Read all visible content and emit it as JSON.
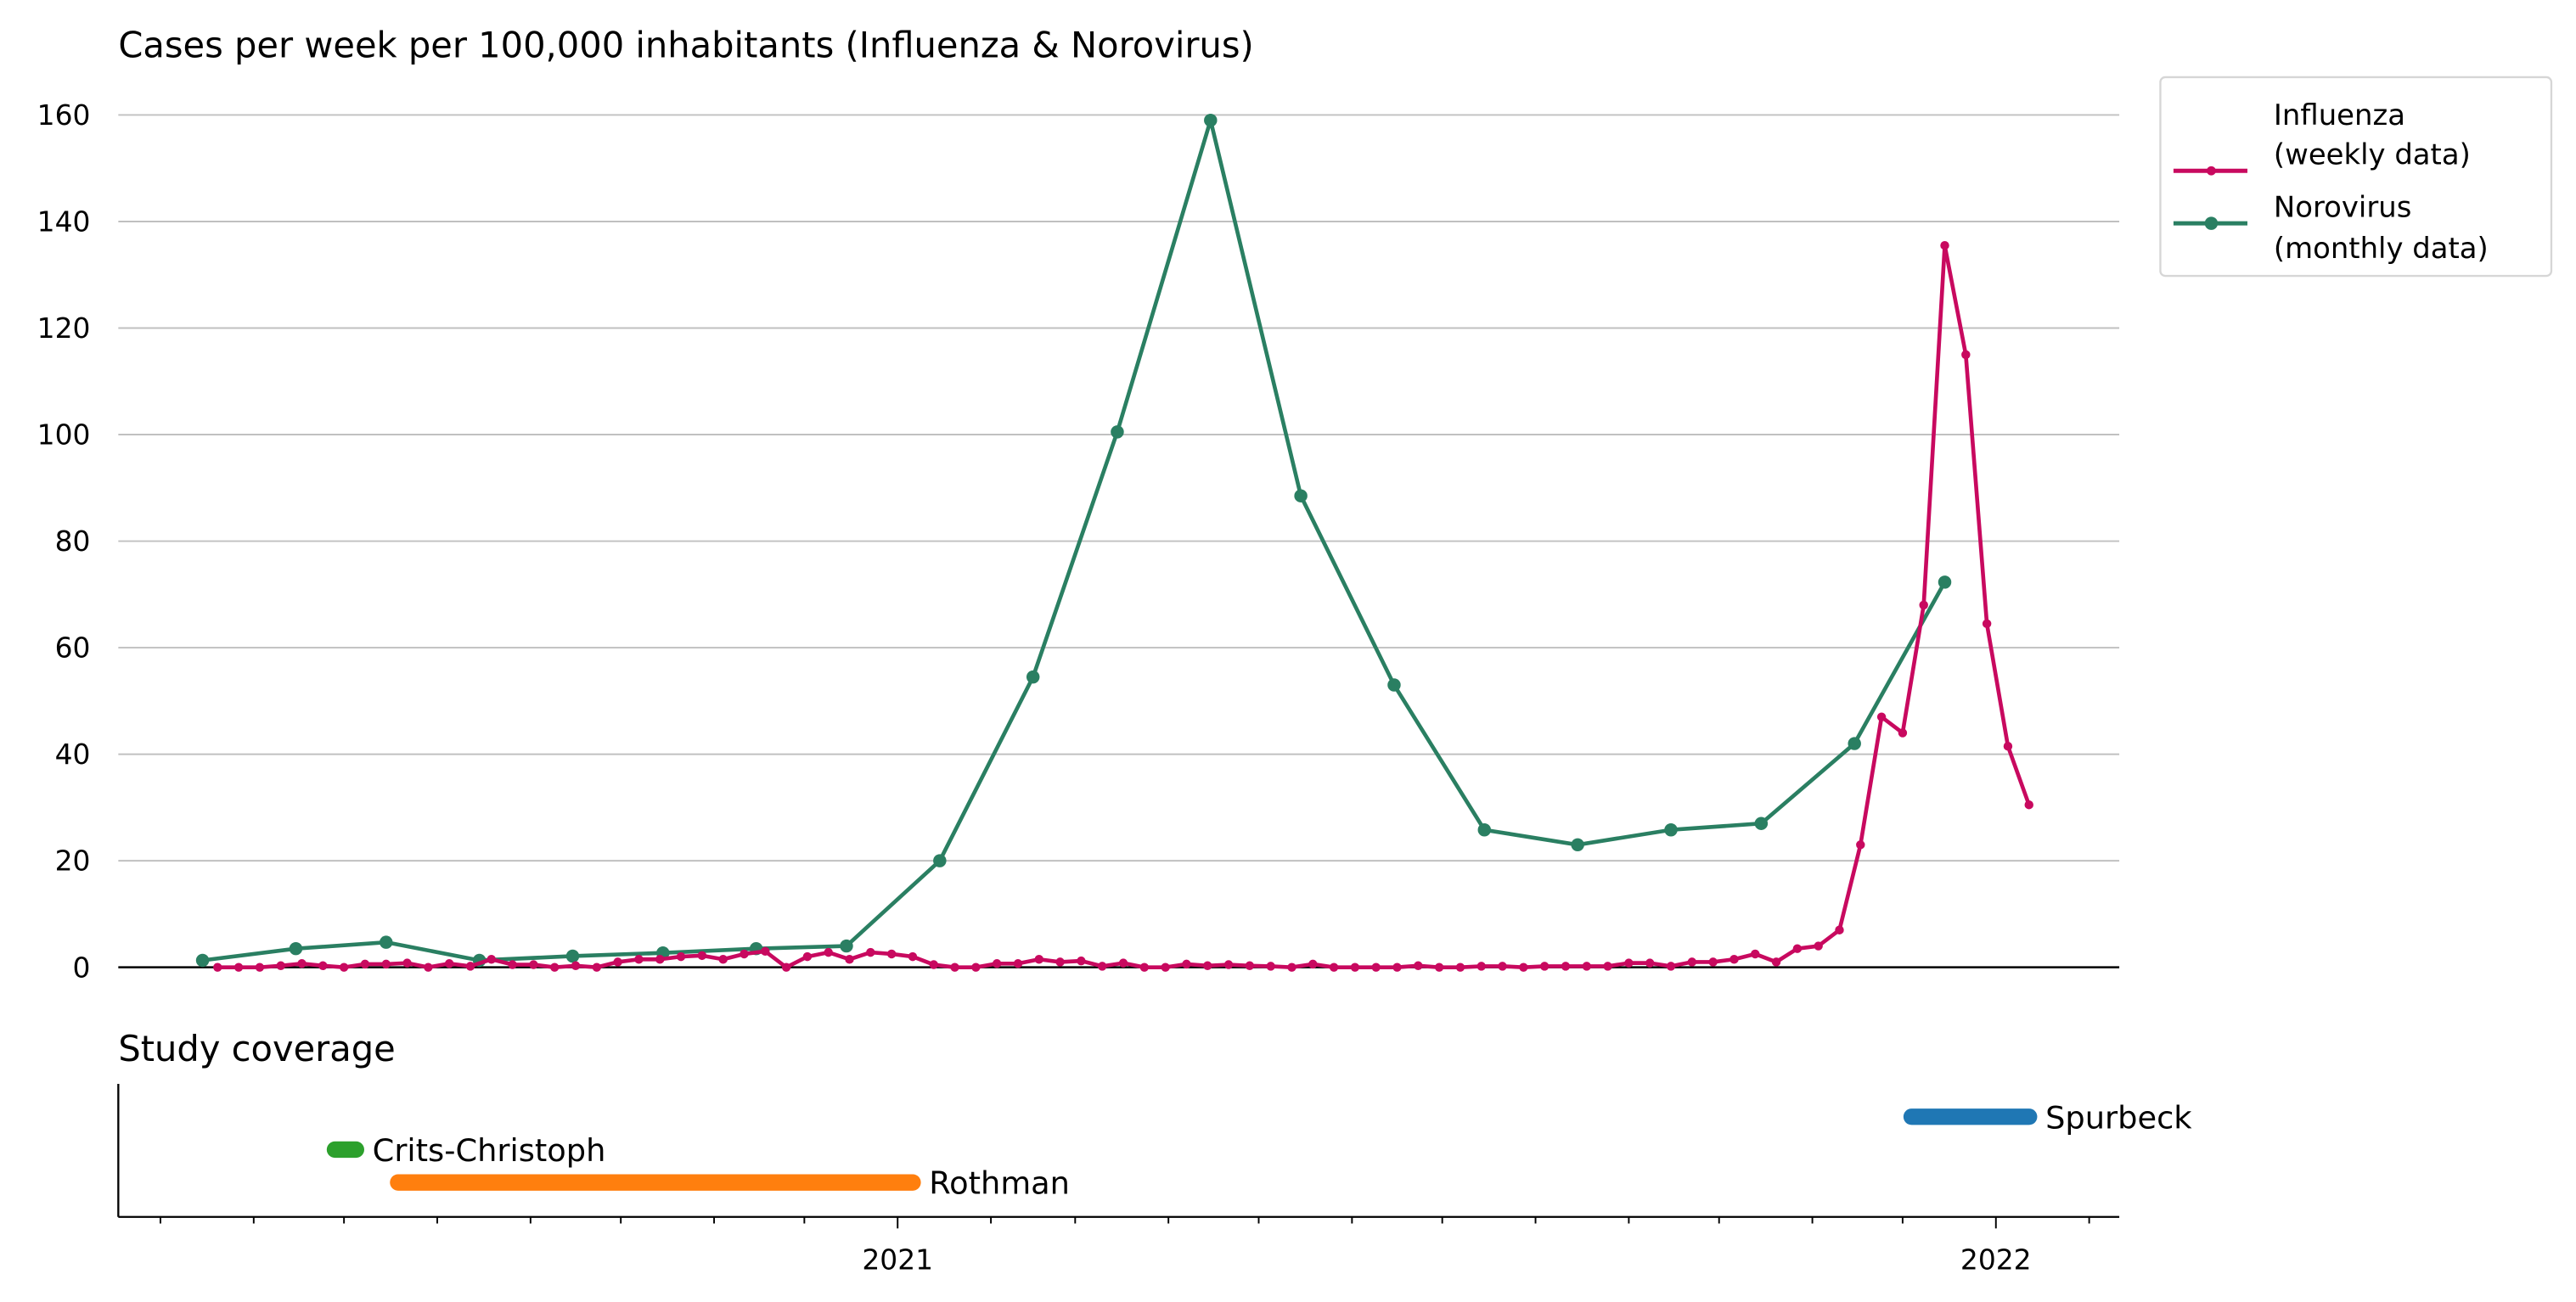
{
  "chart_data": [
    {
      "type": "line",
      "title": "Cases per week per 100,000 inhabitants (Influenza & Norovirus)",
      "xlabel": "",
      "ylabel": "",
      "xlim": [
        "2020-04-17",
        "2022-02-11"
      ],
      "ylim": [
        0,
        165
      ],
      "yticks": [
        0,
        20,
        40,
        60,
        80,
        100,
        120,
        140,
        160
      ],
      "grid": "horizontal",
      "legend_position": "outside-top-right",
      "series": [
        {
          "name": "Influenza\n(weekly data)",
          "legend_lines": [
            "Influenza",
            "(weekly data)"
          ],
          "color": "#c8095f",
          "x": [
            "2020-05-20",
            "2020-05-27",
            "2020-06-03",
            "2020-06-10",
            "2020-06-17",
            "2020-06-24",
            "2020-07-01",
            "2020-07-08",
            "2020-07-15",
            "2020-07-22",
            "2020-07-29",
            "2020-08-05",
            "2020-08-12",
            "2020-08-19",
            "2020-08-26",
            "2020-09-02",
            "2020-09-09",
            "2020-09-16",
            "2020-09-23",
            "2020-09-30",
            "2020-10-07",
            "2020-10-14",
            "2020-10-21",
            "2020-10-28",
            "2020-11-04",
            "2020-11-11",
            "2020-11-18",
            "2020-11-25",
            "2020-12-02",
            "2020-12-09",
            "2020-12-16",
            "2020-12-23",
            "2020-12-30",
            "2021-01-06",
            "2021-01-13",
            "2021-01-20",
            "2021-01-27",
            "2021-02-03",
            "2021-02-10",
            "2021-02-17",
            "2021-02-24",
            "2021-03-03",
            "2021-03-10",
            "2021-03-17",
            "2021-03-24",
            "2021-03-31",
            "2021-04-07",
            "2021-04-14",
            "2021-04-21",
            "2021-04-28",
            "2021-05-05",
            "2021-05-12",
            "2021-05-19",
            "2021-05-26",
            "2021-06-02",
            "2021-06-09",
            "2021-06-16",
            "2021-06-23",
            "2021-06-30",
            "2021-07-07",
            "2021-07-14",
            "2021-07-21",
            "2021-07-28",
            "2021-08-04",
            "2021-08-11",
            "2021-08-18",
            "2021-08-25",
            "2021-09-01",
            "2021-09-08",
            "2021-09-15",
            "2021-09-22",
            "2021-09-29",
            "2021-10-06",
            "2021-10-13",
            "2021-10-20",
            "2021-10-27",
            "2021-11-03",
            "2021-11-10",
            "2021-11-17",
            "2021-11-24",
            "2021-12-01",
            "2021-12-08",
            "2021-12-15",
            "2021-12-22",
            "2021-12-29",
            "2022-01-05",
            "2022-01-12"
          ],
          "values": [
            0,
            0,
            0,
            0.3,
            0.7,
            0.3,
            0,
            0.6,
            0.6,
            0.8,
            0,
            0.7,
            0.2,
            1.5,
            0.5,
            0.5,
            0,
            0.3,
            0,
            1,
            1.5,
            1.5,
            2,
            2.2,
            1.5,
            2.5,
            3,
            0,
            2,
            2.8,
            1.5,
            2.8,
            2.5,
            2,
            0.5,
            0,
            0,
            0.7,
            0.7,
            1.5,
            1,
            1.2,
            0.2,
            0.8,
            0,
            0,
            0.6,
            0.3,
            0.5,
            0.3,
            0.2,
            0,
            0.6,
            0,
            0,
            0,
            0,
            0.3,
            0,
            0,
            0.2,
            0.2,
            0,
            0.2,
            0.2,
            0.2,
            0.2,
            0.8,
            0.8,
            0.2,
            1,
            1,
            1.5,
            2.5,
            1,
            3.5,
            4,
            7,
            23,
            47,
            44,
            68,
            135.5,
            115,
            64.5,
            41.5,
            30.5
          ]
        },
        {
          "name": "Norovirus\n(monthly data)",
          "legend_lines": [
            "Norovirus",
            "(monthly data)"
          ],
          "color": "#2a7f62",
          "x": [
            "2020-05-15",
            "2020-06-15",
            "2020-07-15",
            "2020-08-15",
            "2020-09-15",
            "2020-10-15",
            "2020-11-15",
            "2020-12-15",
            "2021-01-15",
            "2021-02-15",
            "2021-03-15",
            "2021-04-15",
            "2021-05-15",
            "2021-06-15",
            "2021-07-15",
            "2021-08-15",
            "2021-09-15",
            "2021-10-15",
            "2021-11-15",
            "2021-12-15"
          ],
          "values": [
            1.3,
            3.5,
            4.7,
            1.3,
            2.1,
            2.7,
            3.5,
            4,
            20,
            54.5,
            100.5,
            159,
            88.5,
            53,
            25.8,
            23,
            25.8,
            27,
            42,
            72.3
          ]
        }
      ]
    },
    {
      "type": "bar",
      "orientation": "horizontal",
      "title": "Study coverage",
      "xticks": [
        "2021",
        "2022"
      ],
      "xtick_dates": [
        "2021-01-01",
        "2022-01-01"
      ],
      "minor_ticks": "monthly",
      "bars": [
        {
          "label": "Spurbeck",
          "start": "2021-12-04",
          "end": "2022-01-12",
          "color": "#1f77b4"
        },
        {
          "label": "Crits-Christoph",
          "start": "2020-06-28",
          "end": "2020-07-05",
          "color": "#2ca02c"
        },
        {
          "label": "Rothman",
          "start": "2020-07-19",
          "end": "2021-01-06",
          "color": "#ff7f0e"
        }
      ]
    }
  ]
}
